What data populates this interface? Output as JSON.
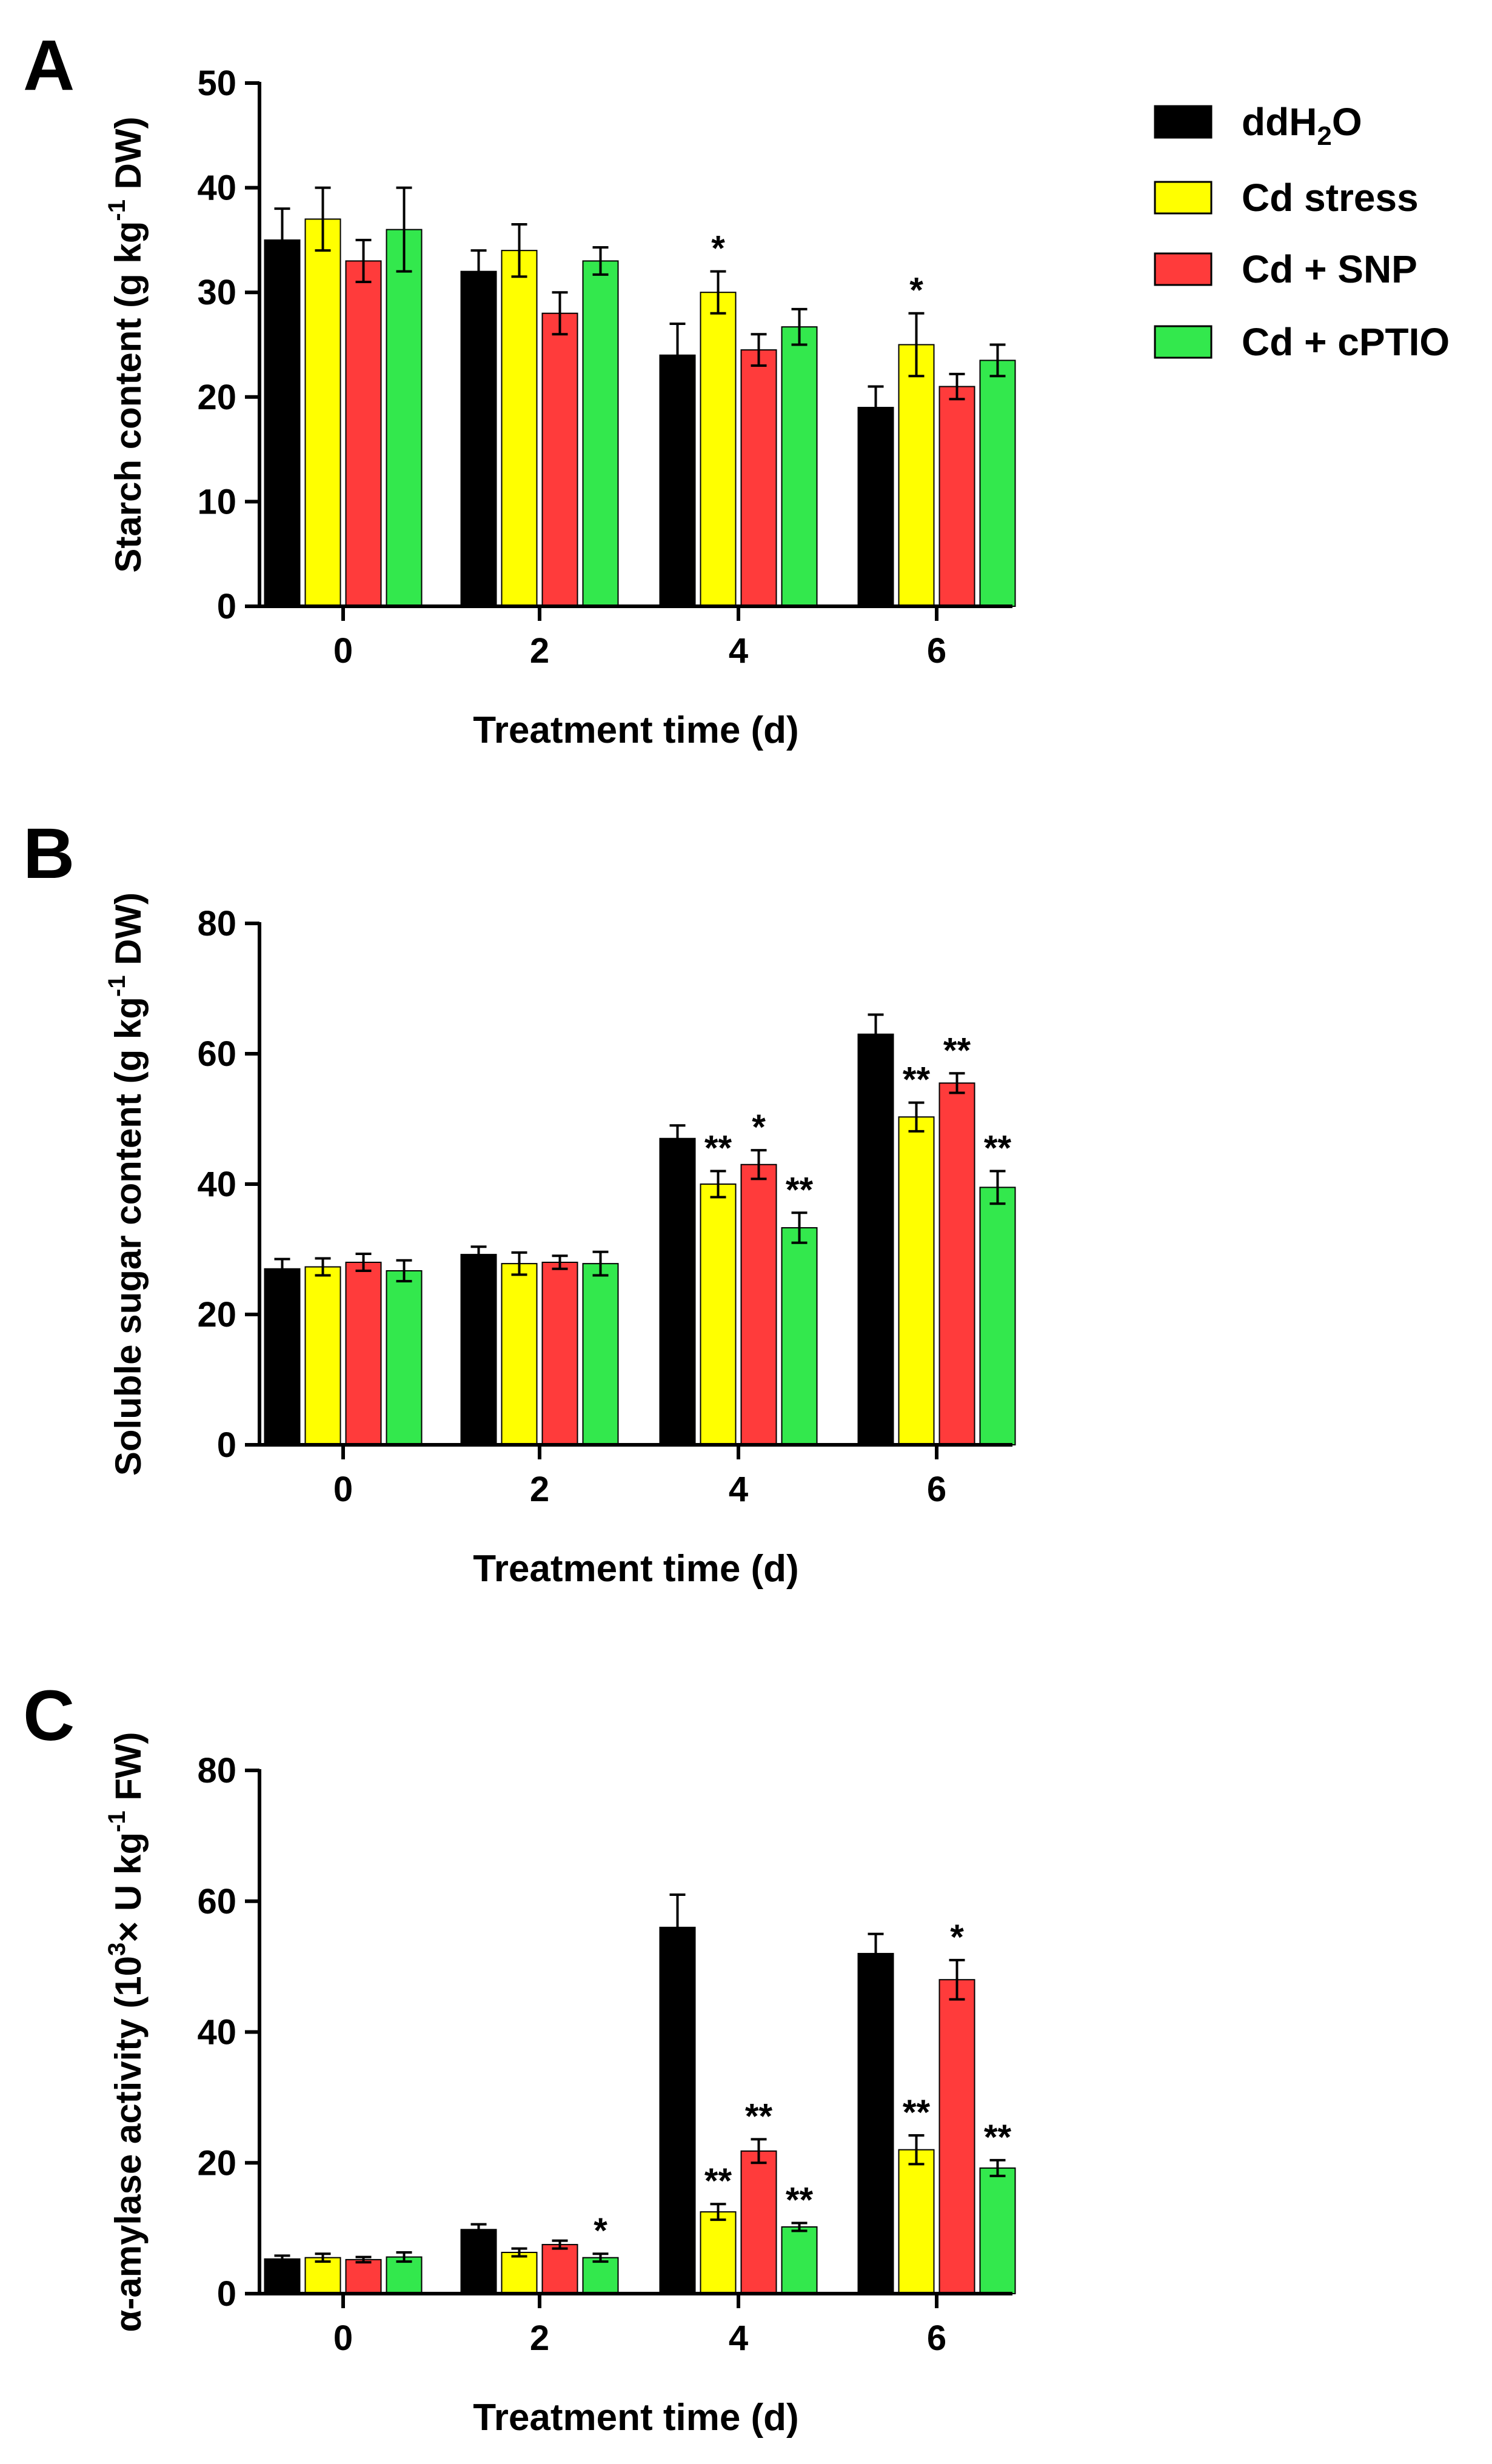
{
  "legend": [
    {
      "key": "ddH2O",
      "label_main": "ddH",
      "label_sub": "2",
      "label_tail": "O",
      "color": "#000000"
    },
    {
      "key": "cd_stress",
      "label_main": "Cd stress",
      "label_sub": "",
      "label_tail": "",
      "color": "#ffff00"
    },
    {
      "key": "cd_snp",
      "label_main": "Cd + SNP",
      "label_sub": "",
      "label_tail": "",
      "color": "#ff3b3b"
    },
    {
      "key": "cd_cptio",
      "label_main": "Cd + cPTIO",
      "label_sub": "",
      "label_tail": "",
      "color": "#33e84d"
    }
  ],
  "chart_data": [
    {
      "panel": "A",
      "type": "bar",
      "title": "",
      "xlabel": "Treatment time (d)",
      "ylabel_main": "Starch content (g kg",
      "ylabel_sup": "-1",
      "ylabel_tail": " DW)",
      "categories": [
        "0",
        "2",
        "4",
        "6"
      ],
      "ylim": [
        0,
        50
      ],
      "yticks": [
        "0",
        "10",
        "20",
        "30",
        "40",
        "50"
      ],
      "series": [
        {
          "name": "ddH2O",
          "values": [
            35,
            32,
            24,
            19
          ],
          "errors": [
            3,
            2,
            3,
            2
          ],
          "marks": [
            "",
            "",
            "",
            ""
          ]
        },
        {
          "name": "Cd stress",
          "values": [
            37,
            34,
            30,
            25
          ],
          "errors": [
            3,
            2.5,
            2,
            3
          ],
          "marks": [
            "",
            "",
            "*",
            "*"
          ]
        },
        {
          "name": "Cd + SNP",
          "values": [
            33,
            28,
            24.5,
            21
          ],
          "errors": [
            2,
            2,
            1.5,
            1.2
          ],
          "marks": [
            "",
            "",
            "",
            ""
          ]
        },
        {
          "name": "Cd + cPTIO",
          "values": [
            36,
            33,
            26.7,
            23.5
          ],
          "errors": [
            4,
            1.3,
            1.7,
            1.5
          ],
          "marks": [
            "",
            "",
            "",
            ""
          ]
        }
      ]
    },
    {
      "panel": "B",
      "type": "bar",
      "title": "",
      "xlabel": "Treatment time (d)",
      "ylabel_main": "Soluble sugar content (g kg",
      "ylabel_sup": "-1",
      "ylabel_tail": " DW)",
      "categories": [
        "0",
        "2",
        "4",
        "6"
      ],
      "ylim": [
        0,
        80
      ],
      "yticks": [
        "0",
        "20",
        "40",
        "60",
        "80"
      ],
      "series": [
        {
          "name": "ddH2O",
          "values": [
            27,
            29.2,
            47,
            63
          ],
          "errors": [
            1.5,
            1.2,
            2,
            3
          ],
          "marks": [
            "",
            "",
            "",
            ""
          ]
        },
        {
          "name": "Cd stress",
          "values": [
            27.3,
            27.8,
            40,
            50.3
          ],
          "errors": [
            1.3,
            1.7,
            2,
            2.2
          ],
          "marks": [
            "",
            "",
            "**",
            "**"
          ]
        },
        {
          "name": "Cd + SNP",
          "values": [
            28,
            28,
            43,
            55.5
          ],
          "errors": [
            1.3,
            1,
            2.2,
            1.5
          ],
          "marks": [
            "",
            "",
            "*",
            "**"
          ]
        },
        {
          "name": "Cd + cPTIO",
          "values": [
            26.7,
            27.8,
            33.3,
            39.5
          ],
          "errors": [
            1.6,
            1.8,
            2.3,
            2.5
          ],
          "marks": [
            "",
            "",
            "**",
            "**"
          ]
        }
      ]
    },
    {
      "panel": "C",
      "type": "bar",
      "title": "",
      "xlabel": "Treatment time (d)",
      "ylabel_main": "α-amylase activity (10",
      "ylabel_sup": "3",
      "ylabel_mid": "× U kg",
      "ylabel_sup2": "-1",
      "ylabel_tail": " FW)",
      "categories": [
        "0",
        "2",
        "4",
        "6"
      ],
      "ylim": [
        0,
        80
      ],
      "yticks": [
        "0",
        "20",
        "40",
        "60",
        "80"
      ],
      "series": [
        {
          "name": "ddH2O",
          "values": [
            5.3,
            9.8,
            56,
            52
          ],
          "errors": [
            0.5,
            0.8,
            5,
            3
          ],
          "marks": [
            "",
            "",
            "",
            ""
          ]
        },
        {
          "name": "Cd stress",
          "values": [
            5.5,
            6.3,
            12.5,
            22
          ],
          "errors": [
            0.6,
            0.6,
            1.2,
            2.2
          ],
          "marks": [
            "",
            "",
            "**",
            "**"
          ]
        },
        {
          "name": "Cd + SNP",
          "values": [
            5.2,
            7.5,
            21.8,
            48
          ],
          "errors": [
            0.4,
            0.6,
            1.8,
            3
          ],
          "marks": [
            "",
            "",
            "**",
            "*"
          ]
        },
        {
          "name": "Cd + cPTIO",
          "values": [
            5.6,
            5.5,
            10.2,
            19.2
          ],
          "errors": [
            0.7,
            0.6,
            0.6,
            1.2
          ],
          "marks": [
            "",
            "*",
            "**",
            "**"
          ]
        }
      ]
    }
  ]
}
